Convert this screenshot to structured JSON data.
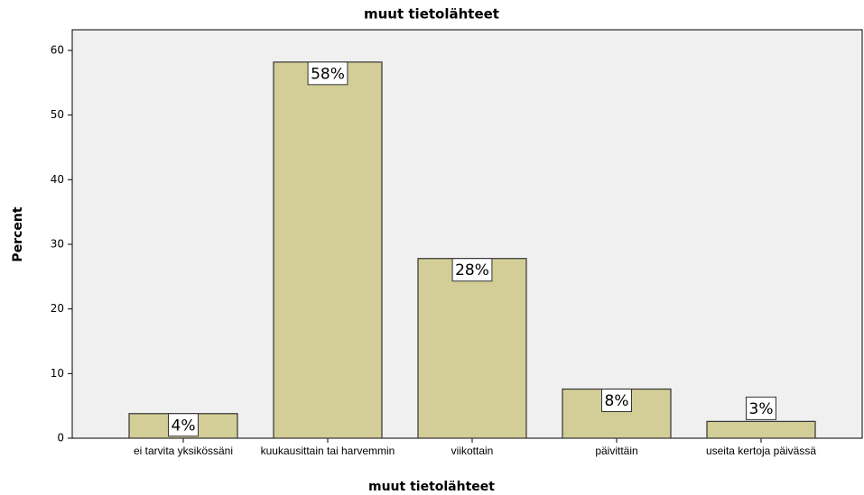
{
  "chart_data": {
    "type": "bar",
    "title": "muut tietolähteet",
    "x_label": "muut tietolähteet",
    "y_label": "Percent",
    "categories": [
      "ei tarvita yksikössäni",
      "kuukausittain tai harvemmin",
      "viikottain",
      "päivittäin",
      "useita kertoja päivässä"
    ],
    "values": [
      3.8,
      58.2,
      27.8,
      7.6,
      2.6
    ],
    "value_labels": [
      "4%",
      "58%",
      "28%",
      "8%",
      "3%"
    ],
    "color": "#d3ce97",
    "ylim": [
      0,
      63.2
    ],
    "yticks": [
      0,
      10,
      20,
      30,
      40,
      50,
      60
    ],
    "grid": false
  }
}
